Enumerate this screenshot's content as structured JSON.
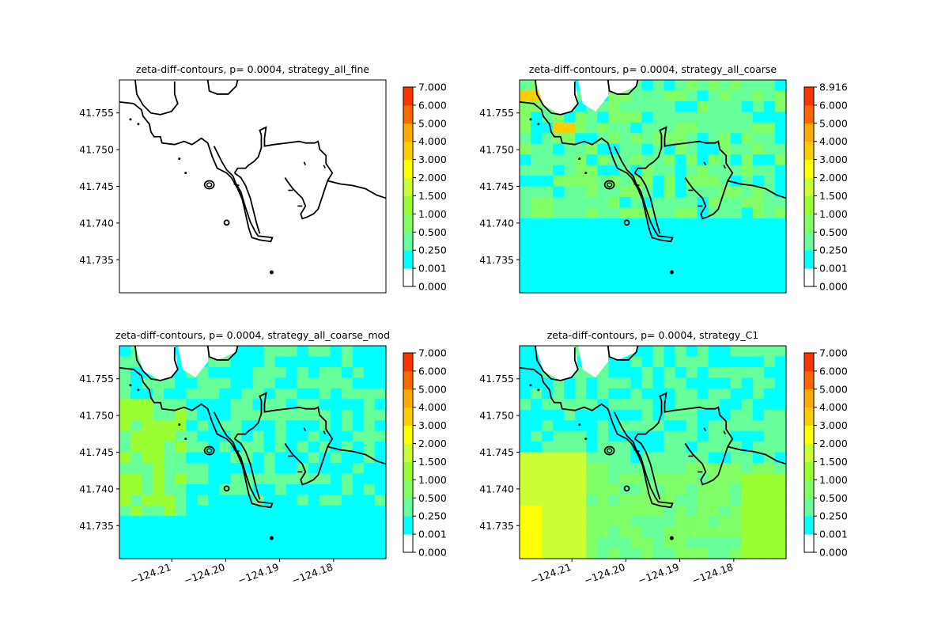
{
  "chart_data": [
    {
      "type": "heatmap",
      "title": "zeta-diff-contours, p= 0.0004, strategy_all_fine",
      "xlabel": "",
      "ylabel": "",
      "xlim": [
        -124.2197,
        -124.1703
      ],
      "ylim": [
        41.7305,
        41.7595
      ],
      "x_ticks": [],
      "y_ticks": [
        41.755,
        41.75,
        41.745,
        41.74,
        41.735
      ],
      "y_tick_labels": [
        "41.755",
        "41.750",
        "41.745",
        "41.740",
        "41.735"
      ],
      "colorbar_levels": [
        "7.000",
        "6.000",
        "5.000",
        "4.000",
        "3.000",
        "2.000",
        "1.500",
        "1.000",
        "0.500",
        "0.250",
        "0.001",
        "0.000"
      ],
      "field": "none"
    },
    {
      "type": "heatmap",
      "title": "zeta-diff-contours, p= 0.0004, strategy_all_coarse",
      "xlabel": "",
      "ylabel": "",
      "xlim": [
        -124.2197,
        -124.1703
      ],
      "ylim": [
        41.7305,
        41.7595
      ],
      "x_ticks": [],
      "y_ticks": [
        41.755,
        41.75,
        41.745,
        41.74,
        41.735
      ],
      "y_tick_labels": [
        "41.755",
        "41.750",
        "41.745",
        "41.740",
        "41.735"
      ],
      "colorbar_levels": [
        "8.916",
        "6.000",
        "5.000",
        "4.000",
        "3.000",
        "2.000",
        "1.500",
        "1.000",
        "0.500",
        "0.250",
        "0.001",
        "0.000"
      ],
      "field": "coarse"
    },
    {
      "type": "heatmap",
      "title": "zeta-diff-contours, p= 0.0004, strategy_all_coarse_mod",
      "xlabel": "",
      "ylabel": "",
      "xlim": [
        -124.2197,
        -124.1703
      ],
      "ylim": [
        41.7305,
        41.7595
      ],
      "x_ticks": [
        -124.21,
        -124.2,
        -124.19,
        -124.18
      ],
      "x_tick_labels": [
        "−124.21",
        "−124.20",
        "−124.19",
        "−124.18"
      ],
      "y_ticks": [
        41.755,
        41.75,
        41.745,
        41.74,
        41.735
      ],
      "y_tick_labels": [
        "41.755",
        "41.750",
        "41.745",
        "41.740",
        "41.735"
      ],
      "colorbar_levels": [
        "7.000",
        "6.000",
        "5.000",
        "4.000",
        "3.000",
        "2.000",
        "1.500",
        "1.000",
        "0.500",
        "0.250",
        "0.001",
        "0.000"
      ],
      "field": "coarse_mod"
    },
    {
      "type": "heatmap",
      "title": "zeta-diff-contours, p= 0.0004, strategy_C1",
      "xlabel": "",
      "ylabel": "",
      "xlim": [
        -124.2197,
        -124.1703
      ],
      "ylim": [
        41.7305,
        41.7595
      ],
      "x_ticks": [
        -124.21,
        -124.2,
        -124.19,
        -124.18
      ],
      "x_tick_labels": [
        "−124.21",
        "−124.20",
        "−124.19",
        "−124.18"
      ],
      "y_ticks": [
        41.755,
        41.75,
        41.745,
        41.74,
        41.735
      ],
      "y_tick_labels": [
        "41.755",
        "41.750",
        "41.745",
        "41.740",
        "41.735"
      ],
      "colorbar_levels": [
        "7.000",
        "6.000",
        "5.000",
        "4.000",
        "3.000",
        "2.000",
        "1.500",
        "1.000",
        "0.500",
        "0.250",
        "0.001",
        "0.000"
      ],
      "field": "c1"
    }
  ],
  "colors": {
    "colorbar": [
      "#ffffff",
      "#00ffff",
      "#66ff99",
      "#80ff66",
      "#99ff33",
      "#ccff33",
      "#ffff00",
      "#ffcc00",
      "#ffaa00",
      "#ff6600",
      "#ff3300",
      "#ff0000"
    ],
    "coastline": "#000000",
    "axes": "#000000"
  }
}
